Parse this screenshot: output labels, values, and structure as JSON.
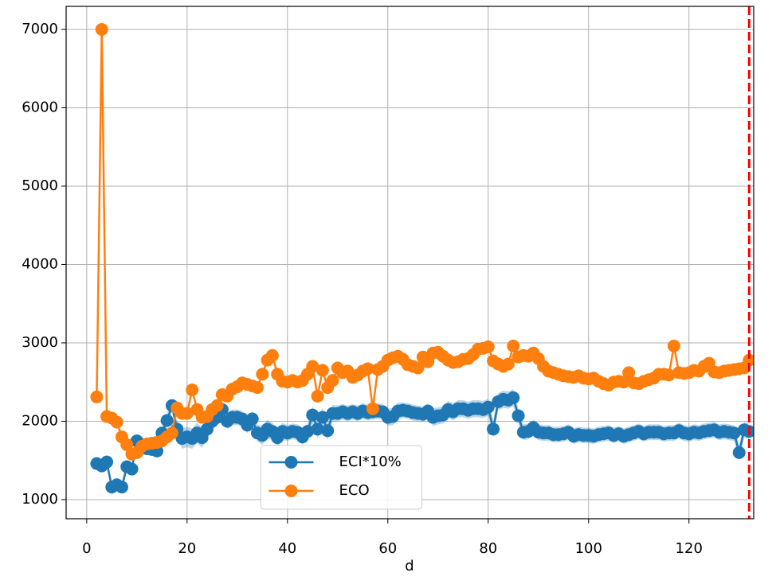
{
  "chart_data": {
    "type": "line",
    "xlabel": "d",
    "x": [
      2,
      3,
      4,
      5,
      6,
      7,
      8,
      9,
      10,
      11,
      12,
      13,
      14,
      15,
      16,
      17,
      18,
      19,
      20,
      21,
      22,
      23,
      24,
      25,
      26,
      27,
      28,
      29,
      30,
      31,
      32,
      33,
      34,
      35,
      36,
      37,
      38,
      39,
      40,
      41,
      42,
      43,
      44,
      45,
      46,
      47,
      48,
      49,
      50,
      51,
      52,
      53,
      54,
      55,
      56,
      57,
      58,
      59,
      60,
      61,
      62,
      63,
      64,
      65,
      66,
      67,
      68,
      69,
      70,
      71,
      72,
      73,
      74,
      75,
      76,
      77,
      78,
      79,
      80,
      81,
      82,
      83,
      84,
      85,
      86,
      87,
      88,
      89,
      90,
      91,
      92,
      93,
      94,
      95,
      96,
      97,
      98,
      99,
      100,
      101,
      102,
      103,
      104,
      105,
      106,
      107,
      108,
      109,
      110,
      111,
      112,
      113,
      114,
      115,
      116,
      117,
      118,
      119,
      120,
      121,
      122,
      123,
      124,
      125,
      126,
      127,
      128,
      129,
      130,
      131,
      132
    ],
    "series": [
      {
        "name": "ECI*10%",
        "color": "#1f77b4",
        "band_color": "#1f77b4",
        "values": [
          1460,
          1430,
          1480,
          1160,
          1190,
          1160,
          1420,
          1390,
          1750,
          1700,
          1650,
          1640,
          1620,
          1850,
          2010,
          2200,
          1900,
          1780,
          1800,
          1780,
          1850,
          1790,
          1900,
          2000,
          2050,
          2150,
          2000,
          2050,
          2050,
          2030,
          1950,
          2030,
          1850,
          1820,
          1900,
          1870,
          1790,
          1870,
          1850,
          1870,
          1860,
          1800,
          1870,
          2080,
          1900,
          2050,
          1880,
          2100,
          2100,
          2120,
          2100,
          2120,
          2100,
          2130,
          2110,
          2120,
          2130,
          2120,
          2050,
          2060,
          2130,
          2140,
          2130,
          2110,
          2100,
          2090,
          2130,
          2050,
          2070,
          2080,
          2150,
          2120,
          2160,
          2160,
          2140,
          2160,
          2160,
          2150,
          2180,
          1900,
          2250,
          2280,
          2270,
          2300,
          2070,
          1860,
          1870,
          1920,
          1860,
          1850,
          1850,
          1830,
          1830,
          1840,
          1860,
          1810,
          1830,
          1820,
          1820,
          1810,
          1830,
          1840,
          1850,
          1820,
          1840,
          1810,
          1830,
          1850,
          1870,
          1840,
          1860,
          1860,
          1860,
          1840,
          1850,
          1850,
          1880,
          1850,
          1840,
          1860,
          1850,
          1870,
          1880,
          1890,
          1860,
          1870,
          1860,
          1850,
          1600,
          1890,
          1870
        ],
        "errors": [
          60,
          60,
          60,
          60,
          60,
          60,
          60,
          60,
          60,
          60,
          60,
          60,
          60,
          80,
          90,
          90,
          110,
          130,
          130,
          130,
          130,
          130,
          120,
          110,
          100,
          100,
          100,
          100,
          100,
          100,
          100,
          100,
          110,
          120,
          120,
          110,
          110,
          110,
          100,
          100,
          100,
          100,
          100,
          110,
          120,
          120,
          120,
          110,
          100,
          100,
          100,
          100,
          100,
          100,
          100,
          100,
          100,
          100,
          110,
          110,
          110,
          100,
          100,
          100,
          100,
          100,
          100,
          110,
          110,
          110,
          110,
          110,
          110,
          110,
          110,
          110,
          110,
          110,
          110,
          110,
          110,
          110,
          110,
          110,
          100,
          100,
          100,
          100,
          100,
          100,
          100,
          100,
          100,
          100,
          100,
          100,
          100,
          100,
          100,
          100,
          100,
          100,
          100,
          100,
          100,
          100,
          100,
          100,
          100,
          100,
          100,
          100,
          100,
          100,
          100,
          100,
          100,
          100,
          100,
          100,
          100,
          100,
          100,
          100,
          100,
          100,
          100,
          100,
          100,
          100,
          100
        ]
      },
      {
        "name": "ECO",
        "color": "#ff7f0e",
        "values": [
          2310,
          7000,
          2060,
          2040,
          1990,
          1800,
          1700,
          1580,
          1600,
          1680,
          1710,
          1720,
          1730,
          1750,
          1800,
          1850,
          2170,
          2100,
          2100,
          2400,
          2150,
          2050,
          2060,
          2150,
          2200,
          2340,
          2320,
          2410,
          2440,
          2490,
          2470,
          2450,
          2430,
          2600,
          2780,
          2840,
          2600,
          2510,
          2500,
          2520,
          2500,
          2520,
          2600,
          2700,
          2320,
          2650,
          2430,
          2520,
          2680,
          2620,
          2640,
          2560,
          2590,
          2640,
          2670,
          2160,
          2660,
          2700,
          2780,
          2810,
          2830,
          2790,
          2720,
          2700,
          2680,
          2820,
          2760,
          2870,
          2880,
          2830,
          2780,
          2750,
          2760,
          2790,
          2800,
          2850,
          2920,
          2930,
          2950,
          2770,
          2730,
          2700,
          2730,
          2960,
          2820,
          2840,
          2830,
          2870,
          2800,
          2700,
          2640,
          2620,
          2600,
          2580,
          2570,
          2560,
          2580,
          2550,
          2540,
          2550,
          2510,
          2480,
          2460,
          2500,
          2510,
          2500,
          2620,
          2490,
          2480,
          2510,
          2530,
          2550,
          2600,
          2600,
          2590,
          2960,
          2620,
          2610,
          2620,
          2650,
          2640,
          2700,
          2740,
          2630,
          2620,
          2640,
          2650,
          2660,
          2670,
          2680,
          2780
        ]
      }
    ],
    "vline": {
      "x": 132,
      "color": "#ff0000"
    },
    "xlim": [
      -4.1,
      132.9
    ],
    "xticks": [
      0,
      20,
      40,
      60,
      80,
      100,
      120
    ],
    "ylim": [
      756,
      7294
    ],
    "yticks": [
      1000,
      2000,
      3000,
      4000,
      5000,
      6000,
      7000
    ],
    "grid": true,
    "legend": "lower center"
  }
}
